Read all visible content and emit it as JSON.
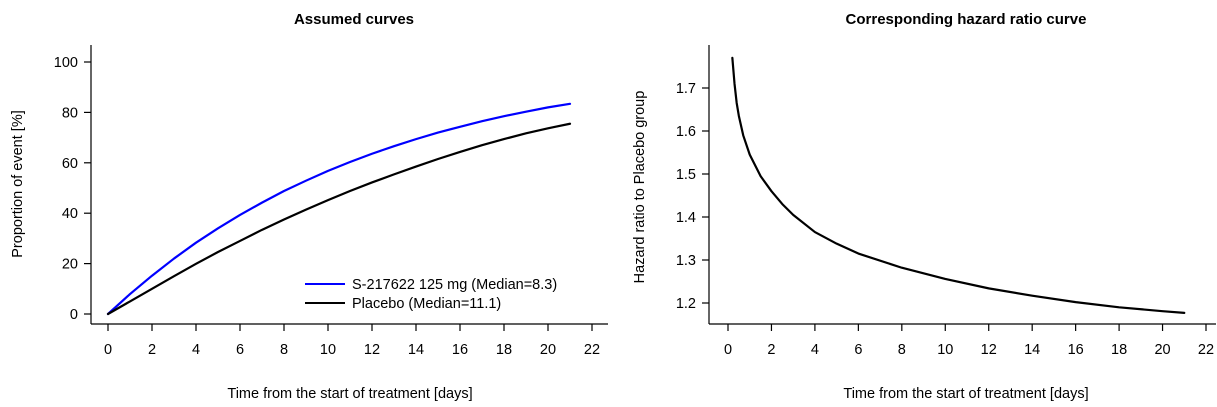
{
  "chart_data": [
    {
      "type": "line",
      "title": "Assumed curves",
      "xlabel": "Time from the start of treatment [days]",
      "ylabel": "Proportion of event [%]",
      "xlim": [
        -1,
        23
      ],
      "ylim": [
        -3,
        106
      ],
      "x_ticks": [
        0,
        2,
        4,
        6,
        8,
        10,
        12,
        14,
        16,
        18,
        20,
        22
      ],
      "y_ticks": [
        0,
        20,
        40,
        60,
        80,
        100
      ],
      "grid": false,
      "legend": "bottom-right",
      "series": [
        {
          "name": "S-217622 125 mg (Median=8.3)",
          "color": "#0000ff",
          "x": [
            0,
            1,
            2,
            3,
            4,
            5,
            6,
            7,
            8,
            9,
            10,
            11,
            12,
            13,
            14,
            15,
            16,
            17,
            18,
            19,
            20,
            21
          ],
          "y": [
            0,
            7.9,
            15.2,
            22.0,
            28.3,
            34.0,
            39.3,
            44.2,
            48.8,
            52.9,
            56.8,
            60.3,
            63.6,
            66.6,
            69.4,
            72.0,
            74.3,
            76.5,
            78.5,
            80.3,
            82.0,
            83.4
          ]
        },
        {
          "name": "Placebo (Median=11.1)",
          "color": "#000000",
          "x": [
            0,
            1,
            2,
            3,
            4,
            5,
            6,
            7,
            8,
            9,
            10,
            11,
            12,
            13,
            14,
            15,
            16,
            17,
            18,
            19,
            20,
            21
          ],
          "y": [
            0,
            5.0,
            10.0,
            15.0,
            19.9,
            24.6,
            29.0,
            33.4,
            37.5,
            41.4,
            45.2,
            48.8,
            52.2,
            55.4,
            58.5,
            61.5,
            64.3,
            67.0,
            69.4,
            71.7,
            73.7,
            75.5
          ]
        }
      ]
    },
    {
      "type": "line",
      "title": "Corresponding hazard ratio curve",
      "xlabel": "Time from the start of treatment [days]",
      "ylabel": "Hazard ratio to Placebo group",
      "xlim": [
        -1,
        23
      ],
      "ylim": [
        1.15,
        1.795
      ],
      "x_ticks": [
        0,
        2,
        4,
        6,
        8,
        10,
        12,
        14,
        16,
        18,
        20,
        22
      ],
      "y_ticks": [
        1.2,
        1.3,
        1.4,
        1.5,
        1.6,
        1.7
      ],
      "y_tick_labels": [
        "1.2",
        "1.3",
        "1.4",
        "1.5",
        "1.6",
        "1.7"
      ],
      "grid": false,
      "series": [
        {
          "color": "#000000",
          "x": [
            0.2,
            0.3,
            0.4,
            0.5,
            0.7,
            1.0,
            1.5,
            2.0,
            2.5,
            3.0,
            4.0,
            5.0,
            6.0,
            8.0,
            10.0,
            12.0,
            14.0,
            16.0,
            18.0,
            20.0,
            21.0
          ],
          "y": [
            1.77,
            1.71,
            1.665,
            1.635,
            1.59,
            1.545,
            1.495,
            1.46,
            1.43,
            1.405,
            1.365,
            1.338,
            1.315,
            1.282,
            1.256,
            1.234,
            1.217,
            1.202,
            1.19,
            1.181,
            1.177
          ]
        }
      ]
    }
  ]
}
